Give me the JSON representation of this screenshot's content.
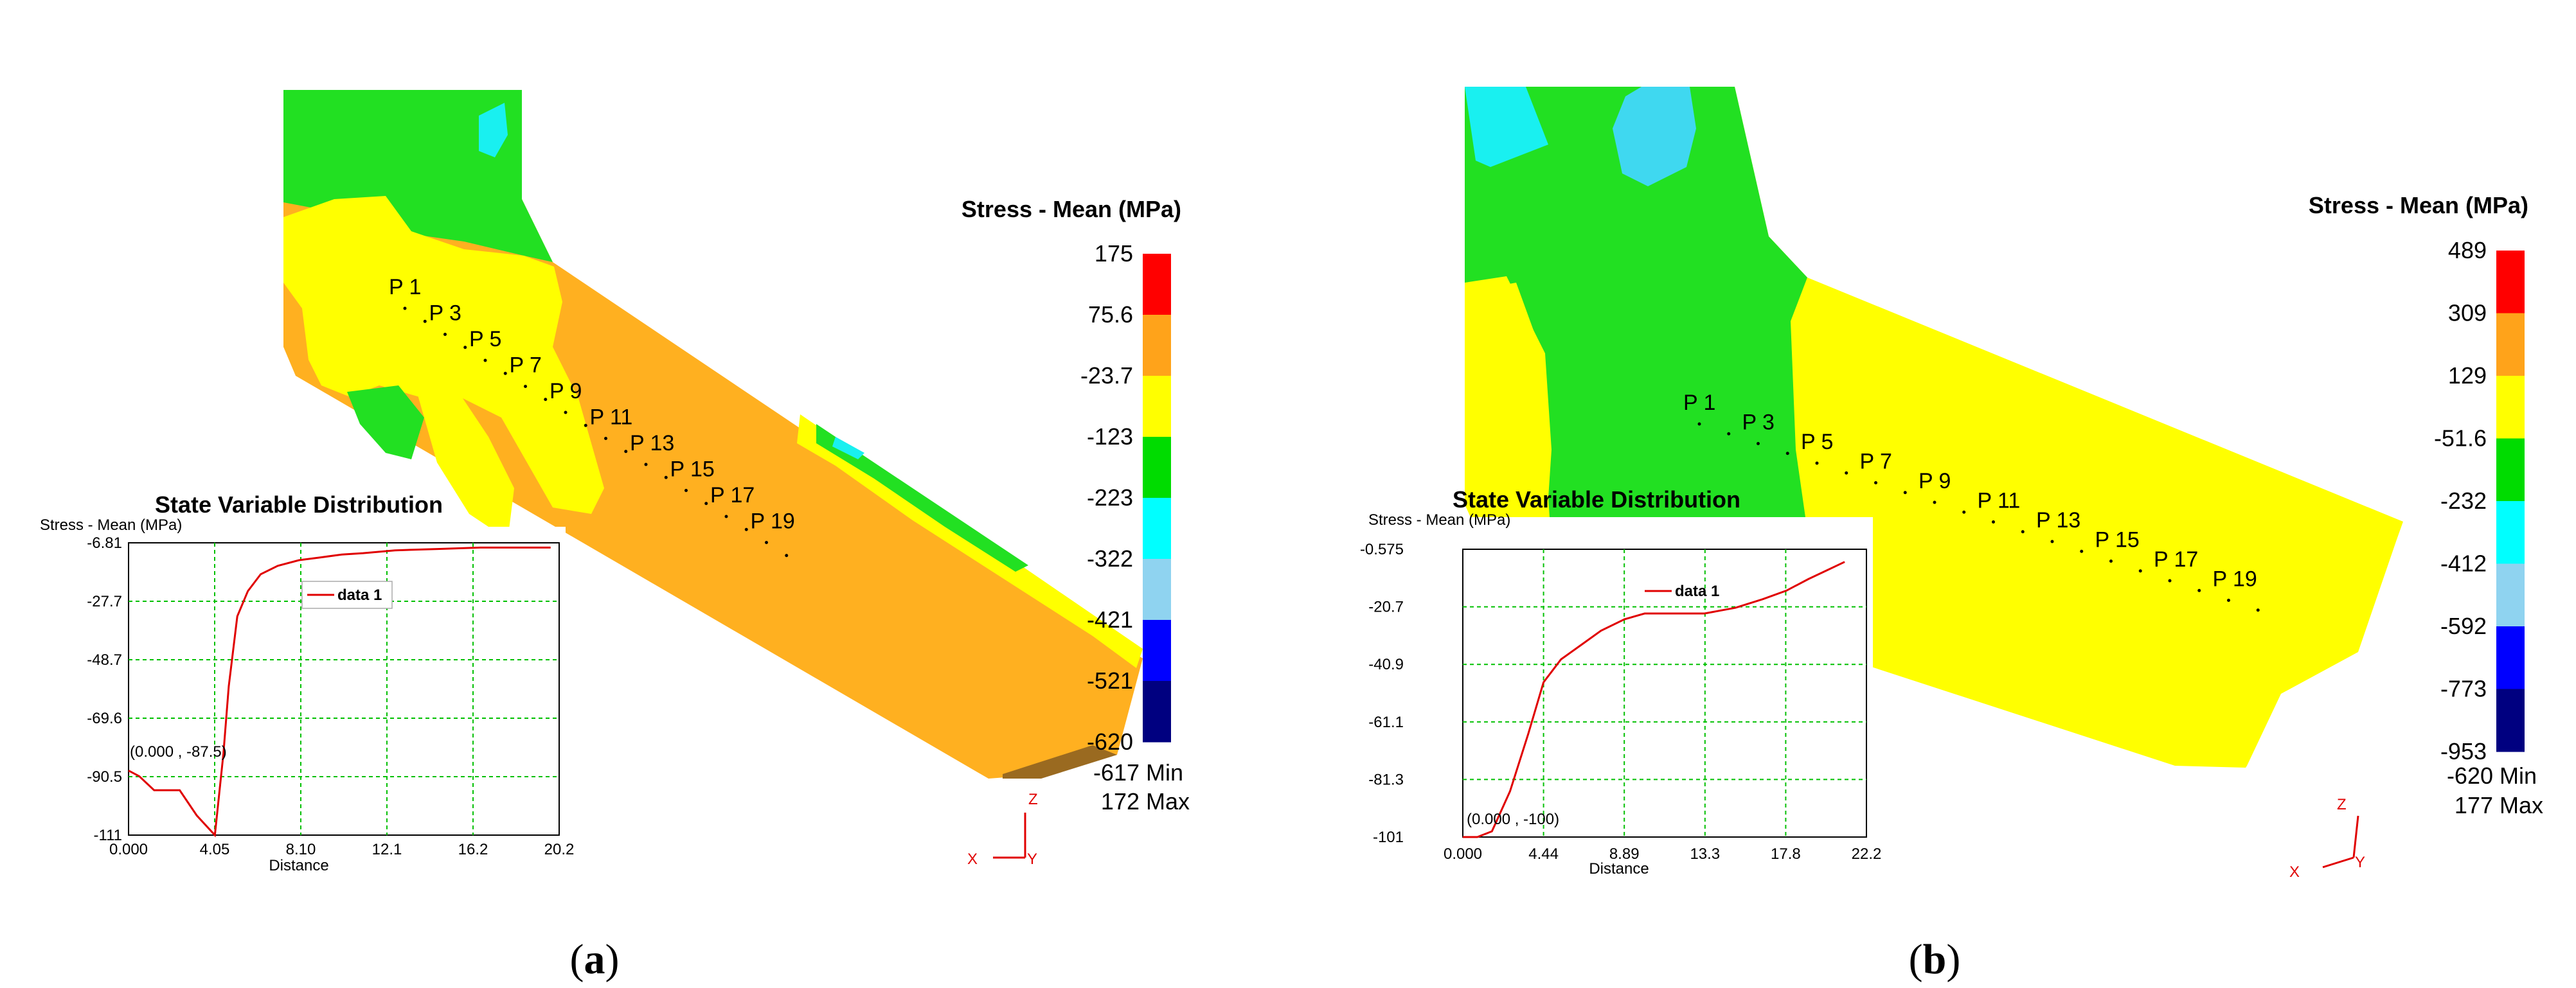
{
  "chart_data": [
    {
      "panel": "a",
      "type": "line",
      "caption": "a",
      "legend": {
        "title": "Stress - Mean (MPa)",
        "ticks": [
          "175",
          "75.6",
          "-23.7",
          "-123",
          "-223",
          "-322",
          "-421",
          "-521",
          "-620"
        ],
        "colors": [
          "#ff0000",
          "#ffa31a",
          "#ffff00",
          "#00dc00",
          "#00ffff",
          "#8fd3f0",
          "#0000ff",
          "#000080"
        ],
        "min_value": "-617",
        "min_label": "Min",
        "max_value": "172",
        "max_label": "Max"
      },
      "probe_points": [
        "P 1",
        "P 3",
        "P 5",
        "P 7",
        "P 9",
        "P 11",
        "P 13",
        "P 15",
        "P 17",
        "P 19"
      ],
      "triad": {
        "z": "Z",
        "x": "X",
        "y": "Y"
      },
      "plot": {
        "title": "State Variable Distribution",
        "ylabel": "Stress - Mean (MPa)",
        "xlabel": "Distance",
        "yticks": [
          "-6.81",
          "-27.7",
          "-48.7",
          "-69.6",
          "-90.5",
          "-111"
        ],
        "xticks": [
          "0.000",
          "4.05",
          "8.10",
          "12.1",
          "16.2",
          "20.2"
        ],
        "xlim": [
          0,
          20.2
        ],
        "ylim": [
          -111,
          -6.81
        ],
        "series": [
          {
            "name": "data 1",
            "color": "#e00000",
            "x": [
              0.0,
              0.5,
              1.2,
              2.4,
              3.2,
              4.05,
              4.45,
              4.7,
              5.1,
              5.6,
              6.2,
              7.0,
              8.0,
              9.0,
              10.0,
              11.0,
              12.5,
              14.5,
              16.5,
              18.5,
              19.8
            ],
            "y": [
              -88,
              -90,
              -95,
              -95,
              -104,
              -111,
              -82,
              -58,
              -33,
              -24,
              -18,
              -15,
              -13,
              -12,
              -11,
              -10.5,
              -9.5,
              -9.0,
              -8.5,
              -8.5,
              -8.5
            ]
          }
        ],
        "annotation": "(0.000 , -87.5)"
      }
    },
    {
      "panel": "b",
      "type": "line",
      "caption": "b",
      "legend": {
        "title": "Stress - Mean (MPa)",
        "ticks": [
          "489",
          "309",
          "129",
          "-51.6",
          "-232",
          "-412",
          "-592",
          "-773",
          "-953"
        ],
        "colors": [
          "#ff0000",
          "#ffa31a",
          "#ffff00",
          "#00dc00",
          "#00ffff",
          "#8fd3f0",
          "#0000ff",
          "#000080"
        ],
        "min_value": "-620",
        "min_label": "Min",
        "max_value": "177",
        "max_label": "Max"
      },
      "probe_points": [
        "P 1",
        "P 3",
        "P 5",
        "P 7",
        "P 9",
        "P 11",
        "P 13",
        "P 15",
        "P 17",
        "P 19"
      ],
      "triad": {
        "z": "Z",
        "x": "X",
        "y": "Y"
      },
      "plot": {
        "title": "State Variable Distribution",
        "ylabel": "Stress - Mean (MPa)",
        "xlabel": "Distance",
        "yticks": [
          "-0.575",
          "-20.7",
          "-40.9",
          "-61.1",
          "-81.3",
          "-101"
        ],
        "xticks": [
          "0.000",
          "4.44",
          "8.89",
          "13.3",
          "17.8",
          "22.2"
        ],
        "xlim": [
          0,
          22.2
        ],
        "ylim": [
          -101,
          -0.575
        ],
        "series": [
          {
            "name": "data 1",
            "color": "#e00000",
            "x": [
              0.0,
              0.8,
              1.6,
              2.6,
              3.6,
              4.44,
              5.4,
              6.5,
              7.6,
              8.89,
              10.0,
              11.5,
              13.3,
              15.0,
              16.5,
              17.8,
              19.0,
              20.0,
              21.0
            ],
            "y": [
              -101,
              -101,
              -99,
              -85,
              -65,
              -47,
              -39,
              -34,
              -29,
              -25,
              -23,
              -23,
              -23,
              -21,
              -18,
              -15,
              -11,
              -8,
              -5
            ]
          }
        ],
        "annotation": "(0.000 , -100)"
      }
    }
  ]
}
